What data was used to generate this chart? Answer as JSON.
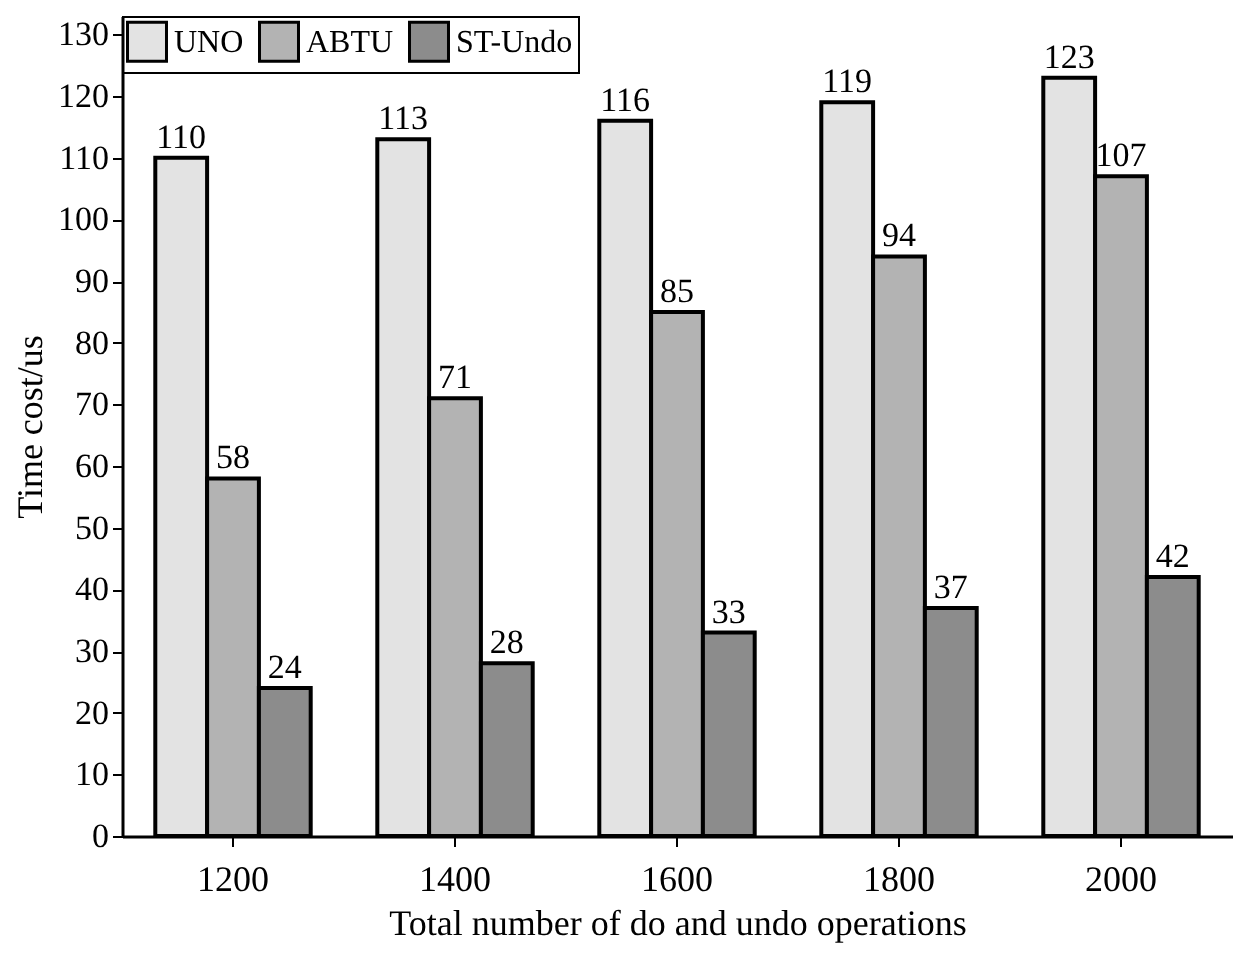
{
  "chart_data": {
    "type": "bar",
    "xlabel": "Total number of do and undo operations",
    "ylabel": "Time cost/us",
    "categories": [
      "1200",
      "1400",
      "1600",
      "1800",
      "2000"
    ],
    "series": [
      {
        "name": "UNO",
        "color": "#e3e3e3",
        "values": [
          110,
          113,
          116,
          119,
          123
        ]
      },
      {
        "name": "ABTU",
        "color": "#b3b3b3",
        "values": [
          58,
          71,
          85,
          94,
          107
        ]
      },
      {
        "name": "ST-Undo",
        "color": "#8c8c8c",
        "values": [
          24,
          28,
          33,
          37,
          42
        ]
      }
    ],
    "ylim": [
      0,
      133
    ],
    "yticks": [
      0,
      10,
      20,
      30,
      40,
      50,
      60,
      70,
      80,
      90,
      100,
      110,
      120,
      130
    ],
    "data_labels": true,
    "legend": "top left",
    "grid": false
  }
}
